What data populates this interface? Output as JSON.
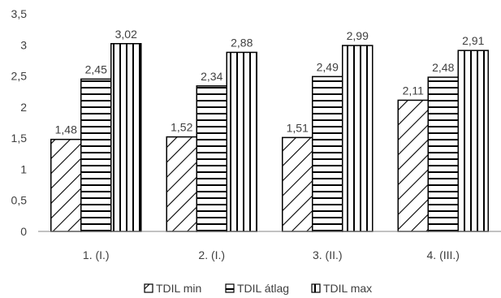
{
  "chart_data": {
    "type": "bar",
    "title": "",
    "xlabel": "",
    "ylabel": "",
    "categories": [
      "1. (I.)",
      "2. (I.)",
      "3. (II.)",
      "4. (III.)"
    ],
    "series": [
      {
        "name": "TDIL min",
        "values": [
          1.48,
          1.52,
          1.51,
          2.11
        ],
        "labels": [
          "1,48",
          "1,52",
          "1,51",
          "2,11"
        ],
        "pattern": "diagonal"
      },
      {
        "name": "TDIL átlag",
        "values": [
          2.45,
          2.34,
          2.49,
          2.48
        ],
        "labels": [
          "2,45",
          "2,34",
          "2,49",
          "2,48"
        ],
        "pattern": "horizontal"
      },
      {
        "name": "TDIL max",
        "values": [
          3.02,
          2.88,
          2.99,
          2.91
        ],
        "labels": [
          "3,02",
          "2,88",
          "2,99",
          "2,91"
        ],
        "pattern": "vertical"
      }
    ],
    "ylim": [
      0,
      3.5
    ],
    "yticks": [
      "0",
      "0,5",
      "1",
      "1,5",
      "2",
      "2,5",
      "3",
      "3,5"
    ],
    "grid": false,
    "legend_position": "bottom",
    "colors": {
      "stroke": "#000000",
      "text": "#404040",
      "axis": "#868686"
    }
  }
}
